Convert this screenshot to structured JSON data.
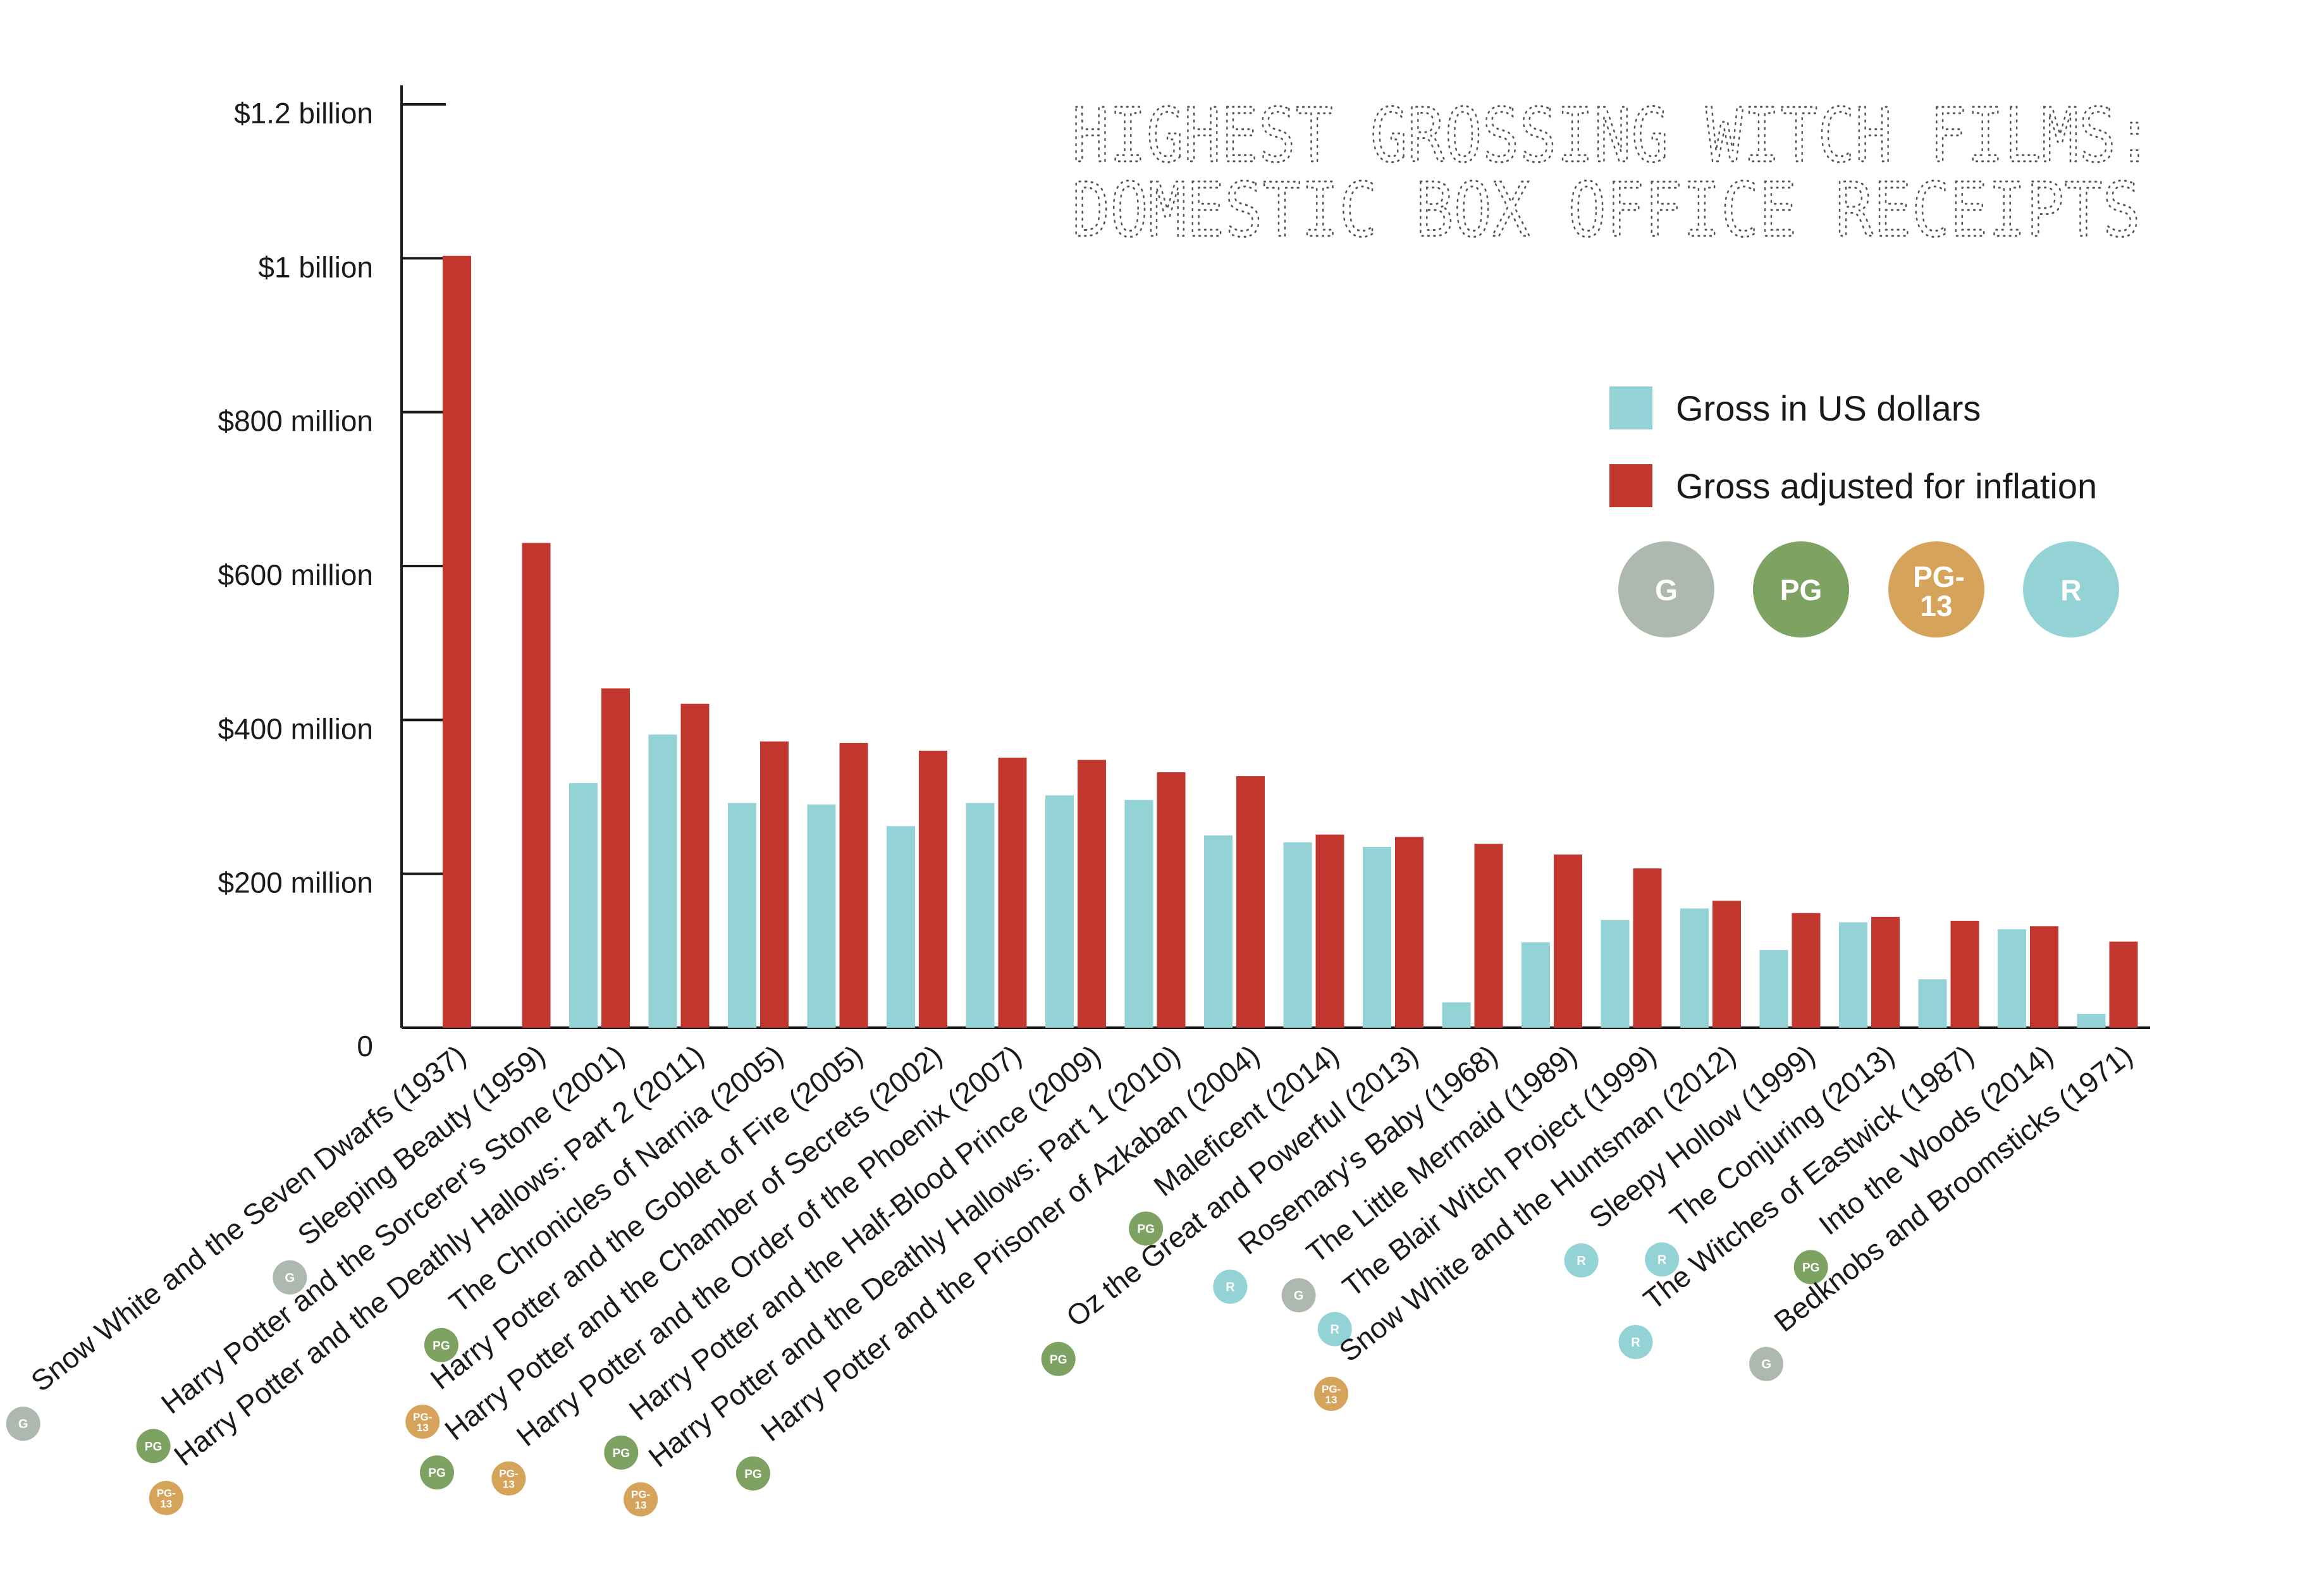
{
  "chart_data": {
    "type": "bar",
    "title": [
      "HIGHEST GROSSING WITCH FILMS:",
      "DOMESTIC BOX OFFICE RECEIPTS"
    ],
    "xlabel": "",
    "ylabel": "",
    "ylim": [
      0,
      1200
    ],
    "yticks": [
      {
        "value": 0,
        "label": "0"
      },
      {
        "value": 200,
        "label": "$200 million"
      },
      {
        "value": 400,
        "label": "$400 million"
      },
      {
        "value": 600,
        "label": "$600 million"
      },
      {
        "value": 800,
        "label": "$800 million"
      },
      {
        "value": 1000,
        "label": "$1 billion"
      },
      {
        "value": 1200,
        "label": "$1.2 billion"
      }
    ],
    "grid": false,
    "legend_position": "top-right",
    "categories": [
      "Snow White and the Seven Dwarfs (1937)",
      "Sleeping Beauty (1959)",
      "Harry Potter and the Sorcerer's Stone (2001)",
      "Harry Potter and the Deathly Hallows: Part 2 (2011)",
      "The Chronicles of Narnia (2005)",
      "Harry Potter and the Goblet of Fire (2005)",
      "Harry Potter and the Chamber of Secrets (2002)",
      "Harry Potter and the Order of the Phoenix (2007)",
      "Harry Potter and the Half-Blood Prince (2009)",
      "Harry Potter and the Deathly Hallows: Part 1 (2010)",
      "Harry Potter and the Prisoner of Azkaban (2004)",
      "Maleficent (2014)",
      "Oz the Great and Powerful (2013)",
      "Rosemary's Baby (1968)",
      "The Little Mermaid (1989)",
      "The Blair Witch Project (1999)",
      "Snow White and the Huntsman (2012)",
      "Sleepy Hollow (1999)",
      "The Conjuring (2013)",
      "The Witches of Eastwick (1987)",
      "Into the Woods (2014)",
      "Bedknobs and Broomsticks (1971)"
    ],
    "ratings": [
      "G",
      "G",
      "PG",
      "PG-13",
      "PG",
      "PG-13",
      "PG",
      "PG-13",
      "PG",
      "PG-13",
      "PG",
      "PG",
      "PG",
      "R",
      "G",
      "R",
      "PG-13",
      "R",
      "R",
      "R",
      "PG",
      "G"
    ],
    "series": [
      {
        "name": "Gross in US dollars",
        "color": "#93d2d5",
        "values": [
          null,
          null,
          318,
          381,
          292,
          290,
          262,
          292,
          302,
          296,
          250,
          241,
          235,
          33,
          111,
          140,
          155,
          101,
          137,
          63,
          128,
          18
        ]
      },
      {
        "name": "Gross adjusted for inflation",
        "color": "#c1362d",
        "values": [
          1003,
          630,
          441,
          421,
          372,
          370,
          360,
          351,
          348,
          332,
          327,
          251,
          248,
          239,
          225,
          207,
          165,
          149,
          144,
          139,
          132,
          112
        ]
      }
    ],
    "rating_legend": [
      {
        "label": "G",
        "color": "#adb8ae"
      },
      {
        "label": "PG",
        "color": "#7da261"
      },
      {
        "label": "PG-13",
        "color": "#d6a35b"
      },
      {
        "label": "R",
        "color": "#93d2d5"
      }
    ]
  }
}
